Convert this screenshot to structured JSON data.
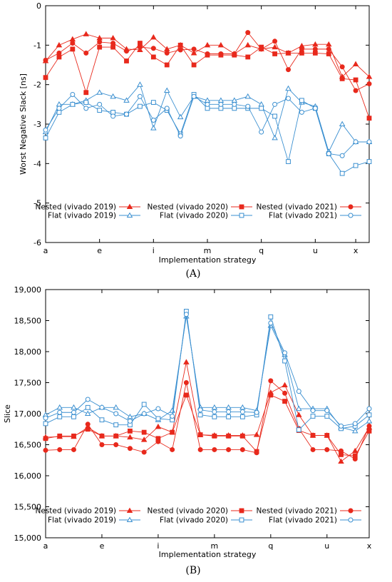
{
  "chart_data": [
    {
      "type": "line",
      "title": "",
      "xlabel": "Implementation strategy",
      "ylabel": "Worst Negative Slack [ns]",
      "caption": "(A)",
      "ylim": [
        -6,
        0
      ],
      "yticks": [
        0,
        -1,
        -2,
        -3,
        -4,
        -5,
        -6
      ],
      "xrange": [
        0,
        24
      ],
      "xticks": [
        {
          "x": 0,
          "label": "a"
        },
        {
          "x": 4,
          "label": "e"
        },
        {
          "x": 8,
          "label": "i"
        },
        {
          "x": 12,
          "label": "m"
        },
        {
          "x": 16,
          "label": "q"
        },
        {
          "x": 20,
          "label": "u"
        },
        {
          "x": 23,
          "label": "x"
        }
      ],
      "grid": false,
      "legend": "bottom, 3 columns",
      "series": [
        {
          "name": "Nested (vivado 2019)",
          "color": "#e8291c",
          "marker": "triangle-filled",
          "values": [
            -1.4,
            -1.0,
            -0.85,
            -0.72,
            -0.82,
            -0.82,
            -1.1,
            -1.12,
            -0.8,
            -1.1,
            -1.0,
            -1.2,
            -1.0,
            -1.0,
            -1.22,
            -1.0,
            -1.1,
            -1.05,
            -1.2,
            -1.02,
            -0.98,
            -0.98,
            -1.8,
            -1.48,
            -1.8
          ]
        },
        {
          "name": "Nested (vivado 2020)",
          "color": "#e8291c",
          "marker": "square-filled",
          "values": [
            -1.82,
            -1.3,
            -1.1,
            -2.2,
            -1.05,
            -1.05,
            -1.4,
            -0.95,
            -1.3,
            -1.5,
            -1.0,
            -1.5,
            -1.25,
            -1.25,
            -1.25,
            -1.3,
            -1.05,
            -1.22,
            -1.2,
            -1.2,
            -1.2,
            -1.22,
            -1.85,
            -1.88,
            -2.85
          ]
        },
        {
          "name": "Nested (vivado 2021)",
          "color": "#e8291c",
          "marker": "circle-filled",
          "values": [
            -1.38,
            -1.2,
            -0.95,
            -1.2,
            -0.92,
            -0.95,
            -1.15,
            -1.05,
            -1.08,
            -1.2,
            -1.12,
            -1.1,
            -1.22,
            -1.22,
            -1.22,
            -0.68,
            -1.1,
            -0.9,
            -1.62,
            -1.1,
            -1.1,
            -1.1,
            -1.55,
            -2.15,
            -1.98
          ]
        },
        {
          "name": "Flat (vivado 2019)",
          "color": "#3a8fd0",
          "marker": "triangle-open",
          "values": [
            -3.2,
            -2.5,
            -2.5,
            -2.4,
            -2.2,
            -2.3,
            -2.4,
            -2.0,
            -3.1,
            -2.15,
            -2.82,
            -2.3,
            -2.4,
            -2.4,
            -2.4,
            -2.3,
            -2.5,
            -3.35,
            -2.1,
            -2.45,
            -2.55,
            -3.7,
            -3.0,
            -3.45,
            -3.45
          ]
        },
        {
          "name": "Flat (vivado 2020)",
          "color": "#3a8fd0",
          "marker": "square-open",
          "values": [
            -3.35,
            -2.7,
            -2.5,
            -2.45,
            -2.65,
            -2.7,
            -2.75,
            -2.55,
            -2.45,
            -2.65,
            -3.25,
            -2.25,
            -2.6,
            -2.6,
            -2.6,
            -2.6,
            -2.6,
            -2.8,
            -3.95,
            -2.4,
            -2.6,
            -3.75,
            -4.25,
            -4.05,
            -3.95
          ]
        },
        {
          "name": "Flat (vivado 2021)",
          "color": "#3a8fd0",
          "marker": "circle-open",
          "values": [
            -3.15,
            -2.6,
            -2.25,
            -2.6,
            -2.5,
            -2.8,
            -2.75,
            -2.3,
            -2.9,
            -2.6,
            -3.3,
            -2.3,
            -2.5,
            -2.5,
            -2.5,
            -2.55,
            -3.2,
            -2.5,
            -2.35,
            -2.7,
            -2.6,
            -3.75,
            -3.8,
            -3.45,
            -3.45
          ]
        }
      ]
    },
    {
      "type": "line",
      "title": "",
      "xlabel": "Implementation strategy",
      "ylabel": "Slice",
      "caption": "(B)",
      "ylim": [
        15000,
        19000
      ],
      "yticks": [
        15000,
        15500,
        16000,
        16500,
        17000,
        17500,
        18000,
        18500,
        19000
      ],
      "ytick_labels": [
        "15,000",
        "15,500",
        "16,000",
        "16,500",
        "17,000",
        "17,500",
        "18,000",
        "18,500",
        "19,000"
      ],
      "xrange": [
        0,
        23
      ],
      "xticks": [
        {
          "x": 0,
          "label": "a"
        },
        {
          "x": 4,
          "label": "e"
        },
        {
          "x": 8,
          "label": "i"
        },
        {
          "x": 12,
          "label": "m"
        },
        {
          "x": 16,
          "label": "q"
        },
        {
          "x": 20,
          "label": "u"
        },
        {
          "x": 23,
          "label": "x"
        }
      ],
      "grid": false,
      "legend": "bottom, 3 columns",
      "series": [
        {
          "name": "Nested (vivado 2019)",
          "color": "#e8291c",
          "marker": "triangle-filled",
          "values": [
            16620,
            16630,
            16630,
            16780,
            16640,
            16640,
            16620,
            16580,
            16790,
            16700,
            17830,
            16660,
            16650,
            16650,
            16650,
            16660,
            17340,
            17460,
            16980,
            16650,
            16650,
            16230,
            16400,
            16780
          ]
        },
        {
          "name": "Nested (vivado 2020)",
          "color": "#e8291c",
          "marker": "square-filled",
          "values": [
            16600,
            16640,
            16640,
            16750,
            16640,
            16640,
            16720,
            16700,
            16600,
            16700,
            17300,
            16660,
            16640,
            16640,
            16640,
            16390,
            17300,
            17200,
            16730,
            16650,
            16650,
            16340,
            16320,
            16720
          ]
        },
        {
          "name": "Nested (vivado 2021)",
          "color": "#e8291c",
          "marker": "circle-filled",
          "values": [
            16410,
            16420,
            16420,
            16830,
            16500,
            16500,
            16440,
            16380,
            16550,
            16420,
            17500,
            16420,
            16420,
            16420,
            16420,
            16370,
            17530,
            17330,
            16760,
            16420,
            16420,
            16400,
            16270,
            16800
          ]
        },
        {
          "name": "Flat (vivado 2019)",
          "color": "#3a8fd0",
          "marker": "triangle-open",
          "values": [
            16980,
            17100,
            17100,
            17000,
            17100,
            17100,
            16950,
            17000,
            16900,
            17050,
            18570,
            17100,
            17100,
            17100,
            17100,
            17050,
            18420,
            17950,
            17080,
            17080,
            17080,
            16780,
            16720,
            16880
          ]
        },
        {
          "name": "Flat (vivado 2020)",
          "color": "#3a8fd0",
          "marker": "square-open",
          "values": [
            16840,
            16950,
            16950,
            17100,
            16900,
            16820,
            16820,
            17150,
            16920,
            16900,
            18650,
            16980,
            16950,
            16950,
            16950,
            16980,
            18560,
            17850,
            16740,
            16960,
            16960,
            16760,
            16800,
            16980
          ]
        },
        {
          "name": "Flat (vivado 2021)",
          "color": "#3a8fd0",
          "marker": "circle-open",
          "values": [
            16930,
            17020,
            17020,
            17230,
            17100,
            17000,
            16880,
            17000,
            17080,
            16960,
            18600,
            17060,
            17030,
            17030,
            17030,
            17020,
            18460,
            17980,
            17360,
            17050,
            17050,
            16800,
            16840,
            17080
          ]
        }
      ]
    }
  ]
}
